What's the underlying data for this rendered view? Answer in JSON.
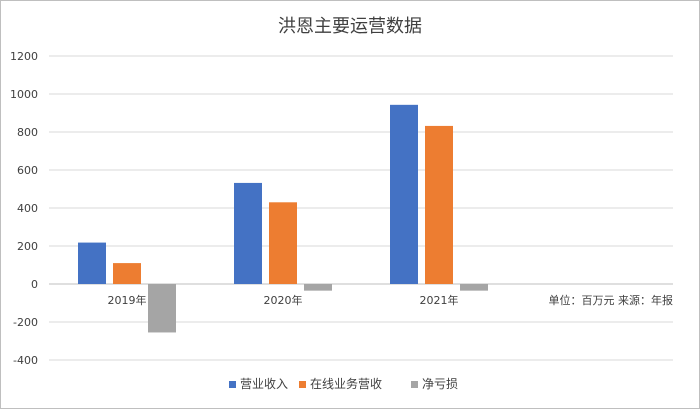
{
  "chart_data": {
    "type": "bar",
    "title": "洪恩主要运营数据",
    "categories": [
      "2019年",
      "2020年",
      "2021年"
    ],
    "series": [
      {
        "name": "营业收入",
        "values": [
          218,
          532,
          943
        ],
        "color": "#4472c4"
      },
      {
        "name": "在线业务营收",
        "values": [
          110,
          430,
          832
        ],
        "color": "#ed7d31"
      },
      {
        "name": "净亏损",
        "values": [
          -255,
          -35,
          -35
        ],
        "color": "#a5a5a5"
      }
    ],
    "ylim": [
      -400,
      1200
    ],
    "yticks": [
      -400,
      -200,
      0,
      200,
      400,
      600,
      800,
      1000,
      1200
    ],
    "grid": true,
    "legend_position": "bottom",
    "note": "单位：百万元 来源：年报"
  }
}
